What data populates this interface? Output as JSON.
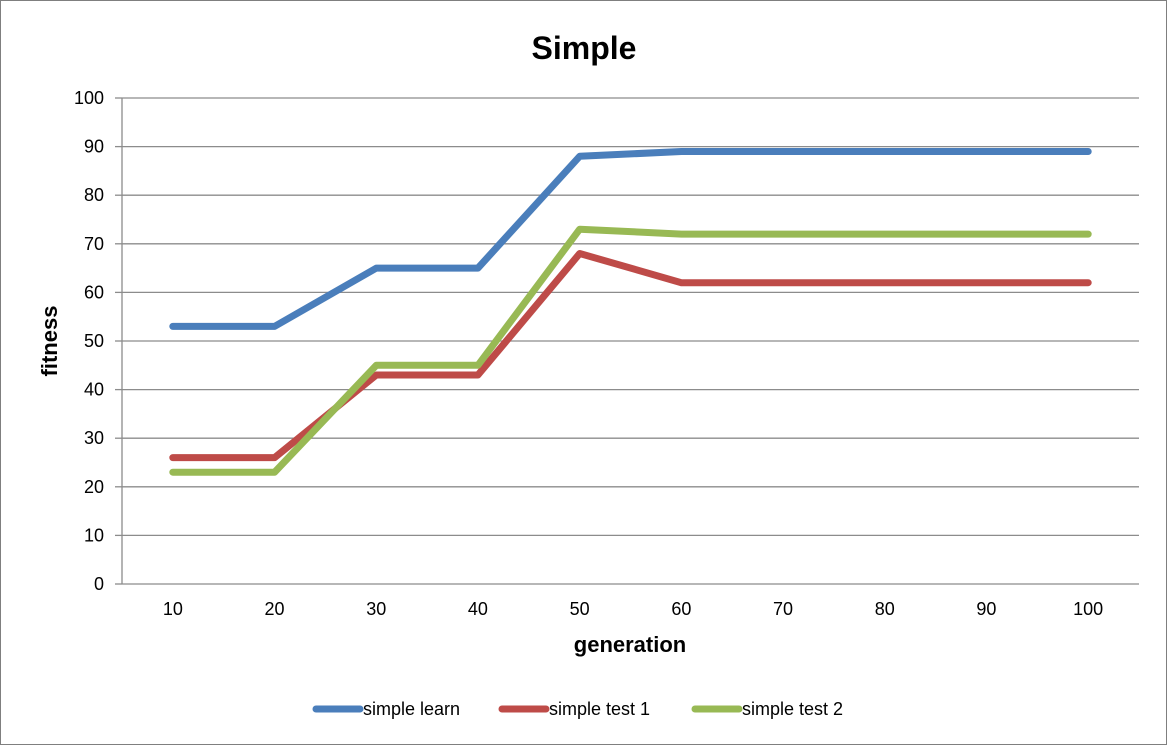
{
  "chart_data": {
    "type": "line",
    "title": "Simple",
    "xlabel": "generation",
    "ylabel": "fitness",
    "categories": [
      "10",
      "20",
      "30",
      "40",
      "50",
      "60",
      "70",
      "80",
      "90",
      "100"
    ],
    "ylim": [
      0,
      100
    ],
    "yticks": [
      0,
      10,
      20,
      30,
      40,
      50,
      60,
      70,
      80,
      90,
      100
    ],
    "grid": true,
    "legend_position": "bottom",
    "series": [
      {
        "name": "simple learn",
        "color": "#4a7ebb",
        "values": [
          53,
          53,
          65,
          65,
          88,
          89,
          89,
          89,
          89,
          89
        ]
      },
      {
        "name": "simple test 1",
        "color": "#be4b48",
        "values": [
          26,
          26,
          43,
          43,
          68,
          62,
          62,
          62,
          62,
          62
        ]
      },
      {
        "name": "simple test 2",
        "color": "#98b954",
        "values": [
          23,
          23,
          45,
          45,
          73,
          72,
          72,
          72,
          72,
          72
        ]
      }
    ]
  }
}
